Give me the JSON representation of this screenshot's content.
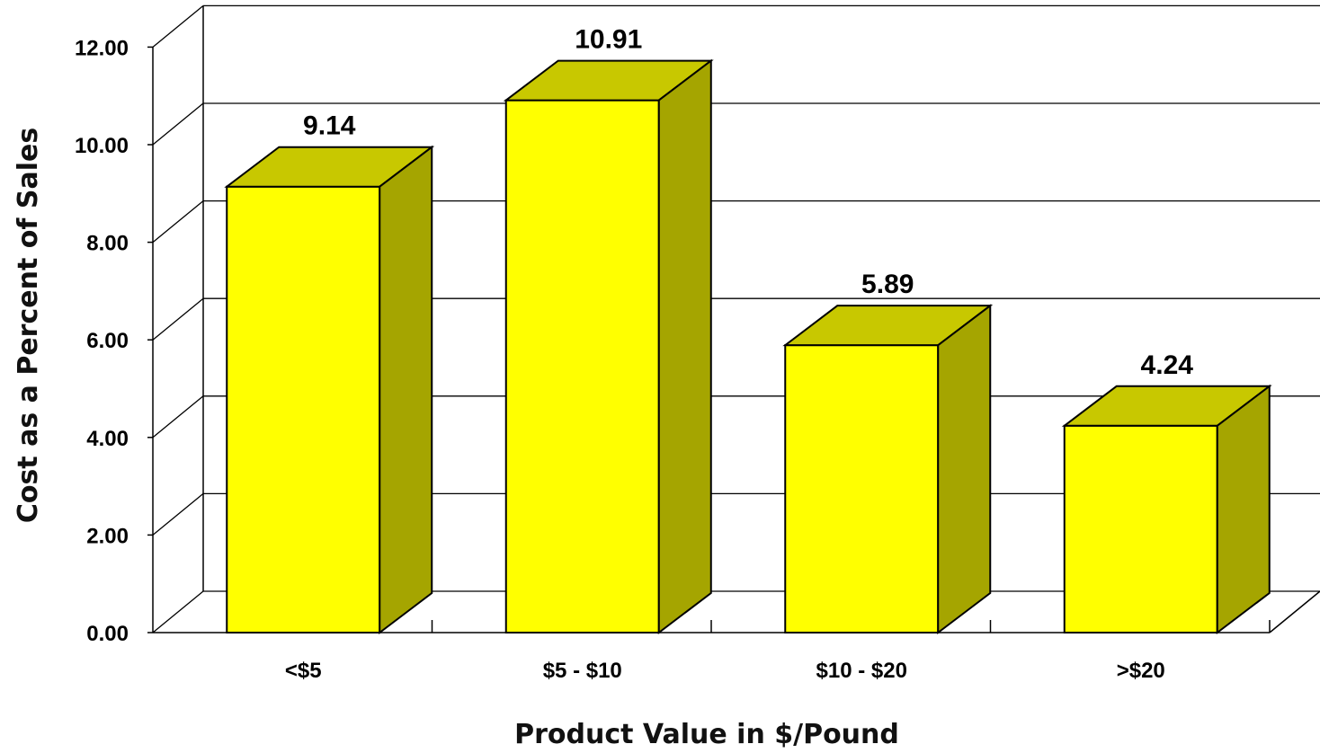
{
  "chart_data": {
    "type": "bar",
    "style": "3d",
    "title": "",
    "xlabel": "Product Value in $/Pound",
    "ylabel": "Cost as a Percent of Sales",
    "categories": [
      "<$5",
      "$5 - $10",
      "$10 - $20",
      ">$20"
    ],
    "values": [
      9.14,
      10.91,
      5.89,
      4.24
    ],
    "value_labels": [
      "9.14",
      "10.91",
      "5.89",
      "4.24"
    ],
    "ylim": [
      0,
      12
    ],
    "yticks": [
      "0.00",
      "2.00",
      "4.00",
      "6.00",
      "8.00",
      "10.00",
      "12.00"
    ],
    "grid": true,
    "legend": "none",
    "colors": {
      "bar_front": "#ffff00",
      "bar_top": "#c8c800",
      "bar_side": "#a5a500",
      "grid": "#000000",
      "background": "#ffffff"
    }
  }
}
